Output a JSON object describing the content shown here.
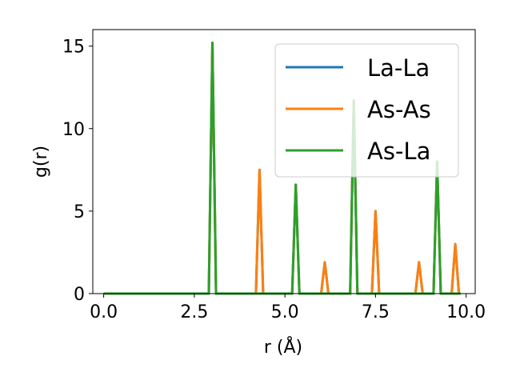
{
  "chart_data": {
    "type": "line",
    "xlabel": "r (Å)",
    "ylabel": "g(r)",
    "xlim": [
      -0.3,
      10.25
    ],
    "ylim": [
      0,
      16
    ],
    "xticks": [
      0.0,
      2.5,
      5.0,
      7.5,
      10.0
    ],
    "xtick_labels": [
      "0.0",
      "2.5",
      "5.0",
      "7.5",
      "10.0"
    ],
    "yticks": [
      0,
      5,
      10,
      15
    ],
    "ytick_labels": [
      "0",
      "5",
      "10",
      "15"
    ],
    "grid": false,
    "legend_position": "top-right",
    "series": [
      {
        "name": "La-La",
        "color": "#1f77b4",
        "x": [
          0.0,
          2.9,
          3.0,
          3.1,
          4.2,
          4.3,
          4.4,
          5.2,
          5.3,
          5.4,
          6.0,
          6.1,
          6.2,
          6.8,
          6.9,
          7.0,
          7.4,
          7.5,
          7.6,
          8.6,
          8.7,
          8.8,
          9.1,
          9.2,
          9.3,
          9.6,
          9.7,
          9.8,
          9.85
        ],
        "y": [
          0,
          0,
          15.2,
          0,
          0,
          7.5,
          0,
          0,
          6.6,
          0,
          0,
          1.9,
          0,
          0,
          11.7,
          0,
          0,
          5.0,
          0,
          0,
          1.9,
          0,
          0,
          8.0,
          0,
          0,
          3.0,
          0,
          0
        ]
      },
      {
        "name": "As-As",
        "color": "#ff7f0e",
        "x": [
          0.0,
          2.9,
          3.0,
          3.1,
          4.2,
          4.3,
          4.4,
          5.2,
          5.3,
          5.4,
          6.0,
          6.1,
          6.2,
          6.8,
          6.9,
          7.0,
          7.4,
          7.5,
          7.6,
          8.6,
          8.7,
          8.8,
          9.1,
          9.2,
          9.3,
          9.6,
          9.7,
          9.8,
          9.85
        ],
        "y": [
          0,
          0,
          15.2,
          0,
          0,
          7.5,
          0,
          0,
          6.6,
          0,
          0,
          1.9,
          0,
          0,
          11.7,
          0,
          0,
          5.0,
          0,
          0,
          1.9,
          0,
          0,
          8.0,
          0,
          0,
          3.0,
          0,
          0
        ]
      },
      {
        "name": "As-La",
        "color": "#2ca02c",
        "x": [
          0.0,
          2.9,
          3.0,
          3.1,
          4.2,
          4.3,
          4.4,
          5.2,
          5.3,
          5.4,
          6.0,
          6.1,
          6.2,
          6.8,
          6.9,
          7.0,
          7.4,
          7.5,
          7.6,
          8.6,
          8.7,
          8.8,
          9.1,
          9.2,
          9.3,
          9.6,
          9.7,
          9.8,
          9.85
        ],
        "y": [
          0,
          0,
          15.2,
          0,
          0,
          0,
          0,
          0,
          6.6,
          0,
          0,
          0,
          0,
          0,
          11.7,
          0,
          0,
          0,
          0,
          0,
          0,
          0,
          0,
          8.0,
          0,
          0,
          0,
          0,
          0
        ]
      }
    ]
  }
}
